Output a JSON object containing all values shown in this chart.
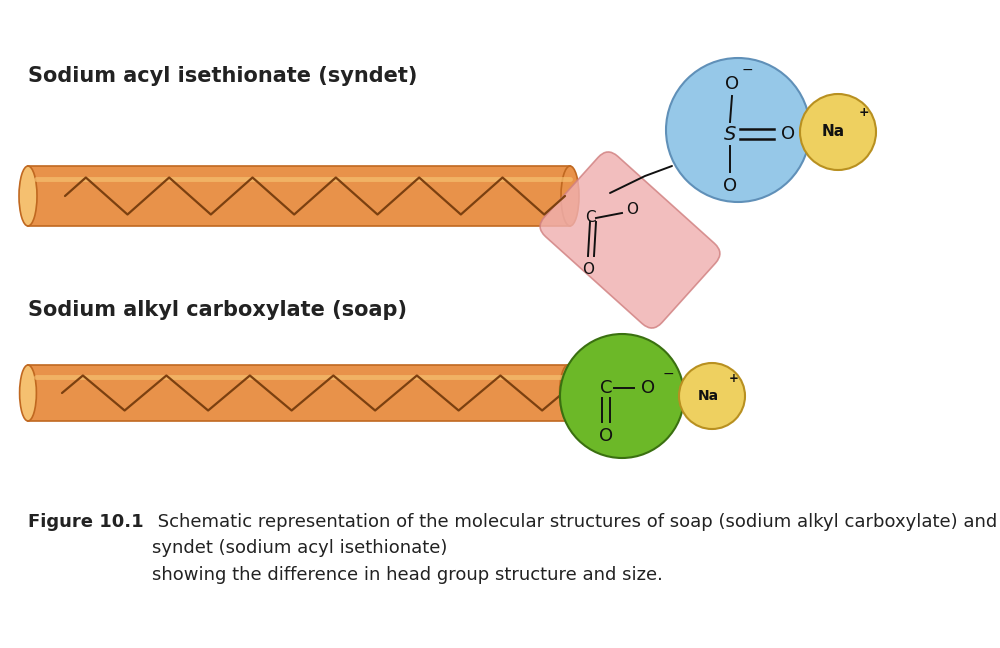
{
  "title1": "Sodium acyl isethionate (syndet)",
  "title2": "Sodium alkyl carboxylate (soap)",
  "figure_caption_bold": "Figure 10.1",
  "figure_caption_normal": " Schematic representation of the molecular structures of soap (sodium alkyl carboxylate) and syndet (sodium acyl isethionate)\nshowing the difference in head group structure and size.",
  "bg_color": "#ffffff",
  "tail_color": "#E8924A",
  "tail_edge_color": "#C06820",
  "tail_highlight_color": "#F5C070",
  "pink_group_color": "#F0B0B0",
  "pink_group_edge": "#D08080",
  "blue_circle_color": "#96C8E8",
  "blue_circle_edge": "#6090B8",
  "yellow_circle_color": "#EED060",
  "yellow_circle_edge": "#B89020",
  "green_circle_color": "#6CB828",
  "green_circle_edge": "#3A7010",
  "text_color": "#222222",
  "bond_color": "#111111",
  "title_fontsize": 15,
  "caption_fontsize": 13,
  "label_fontsize_large": 13,
  "label_fontsize_small": 11
}
